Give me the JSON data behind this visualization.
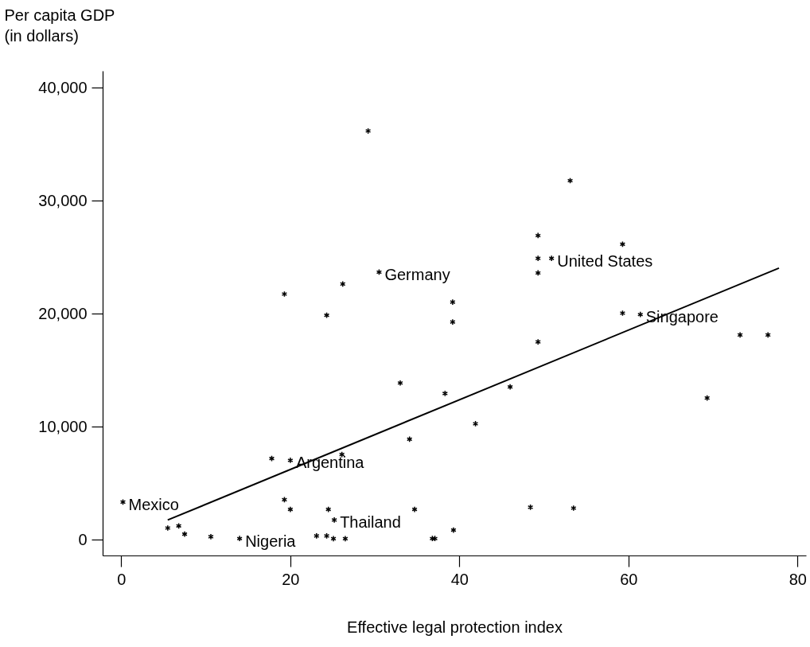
{
  "chart_data": {
    "type": "scatter",
    "xlabel": "Effective legal protection index",
    "ylabel": "Per capita GDP\n(in dollars)",
    "xlim": [
      -2.2,
      81
    ],
    "ylim": [
      -1400,
      41500
    ],
    "xticks": [
      0,
      20,
      40,
      60,
      80
    ],
    "yticks": [
      0,
      {
        "value": 10000,
        "label": "10,000"
      },
      {
        "value": 20000,
        "label": "20,000"
      },
      {
        "value": 30000,
        "label": "30,000"
      },
      {
        "value": 40000,
        "label": "40,000"
      }
    ],
    "grid": false,
    "marker": "cross",
    "series": [
      {
        "color": "#000000",
        "x": [
          0.2,
          5.5,
          6.8,
          7.5,
          10.6,
          14.0,
          17.8,
          20.0,
          26.1,
          34.1,
          19.3,
          20.0,
          24.5,
          25.2,
          34.7,
          23.1,
          24.3,
          25.1,
          26.5,
          36.8,
          37.1,
          39.3,
          48.4,
          53.5,
          29.2,
          19.3,
          26.2,
          30.5,
          24.3,
          39.2,
          39.2,
          53.1,
          49.3,
          59.3,
          49.3,
          50.9,
          49.3,
          59.3,
          61.4,
          73.2,
          76.5,
          49.3,
          69.3,
          46.0,
          33.0,
          38.3,
          41.9
        ],
        "values": [
          3330,
          1030,
          1220,
          490,
          260,
          100,
          7180,
          7020,
          7540,
          8890,
          3540,
          2680,
          2680,
          1740,
          2680,
          330,
          330,
          90,
          90,
          100,
          100,
          850,
          2870,
          2790,
          36180,
          21740,
          22630,
          23680,
          19860,
          21030,
          19270,
          31780,
          26920,
          26150,
          24900,
          24900,
          23610,
          20050,
          19930,
          18120,
          18120,
          17510,
          12540,
          13520,
          13870,
          12940,
          10260
        ]
      },
      {
        "type": "line",
        "marker": "none",
        "color": "#000000",
        "x": [
          5.5,
          77.8
        ],
        "values": [
          1740,
          24040
        ]
      }
    ],
    "annotations": [
      {
        "text": "Mexico",
        "x": 0.2,
        "y": 3330
      },
      {
        "text": "Nigeria",
        "x": 14.0,
        "y": 100
      },
      {
        "text": "Argentina",
        "x": 20.0,
        "y": 7020
      },
      {
        "text": "Thailand",
        "x": 25.2,
        "y": 1740
      },
      {
        "text": "Germany",
        "x": 30.5,
        "y": 23680
      },
      {
        "text": "United States",
        "x": 50.9,
        "y": 24900
      },
      {
        "text": "Singapore",
        "x": 61.4,
        "y": 19930
      }
    ]
  }
}
